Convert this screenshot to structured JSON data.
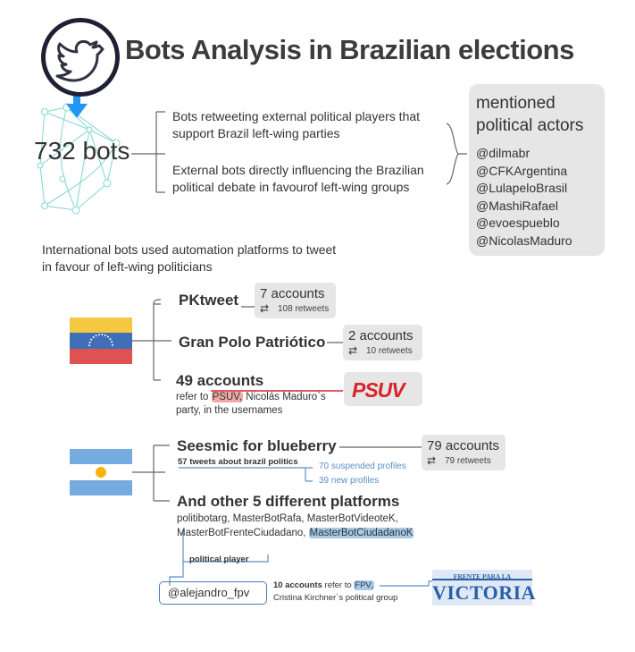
{
  "title": "Bots Analysis in Brazilian elections",
  "bots_count": "732 bots",
  "summary": {
    "line1": "Bots retweeting external political players that support Brazil left-wing parties",
    "line2": "External bots directly influencing the Brazilian political debate in favourof left-wing groups"
  },
  "actors": {
    "title": "mentioned political actors",
    "items": [
      "@dilmabr",
      "@CFKArgentina",
      "@LulapeloBrasil",
      "@MashiRafael",
      "@evoespueblo",
      "@NicolasMaduro"
    ]
  },
  "intro": "International bots used automation platforms to tweet in favour of left-wing politicians",
  "venezuela": {
    "flag_colors": [
      "#f5c842",
      "#3f6fb8",
      "#e05252"
    ],
    "pktweet": {
      "label": "PKtweet",
      "accounts": "7 accounts",
      "retweets": "108 retweets"
    },
    "gran_polo": {
      "label": "Gran Polo Patriótico",
      "accounts": "2 accounts",
      "retweets": "10 retweets"
    },
    "psuv": {
      "label": "49 accounts",
      "desc_before": "refer to ",
      "desc_highlight": "PSUV,",
      "desc_after": " Nicolás Maduro`s party, in the usernames",
      "logo_text": "PSUV"
    }
  },
  "argentina": {
    "flag_colors": [
      "#74acdf",
      "#ffffff",
      "#f6b40e"
    ],
    "seesmic": {
      "label": "Seesmic for blueberry",
      "accounts": "79 accounts",
      "retweets": "79 retweets",
      "tweets_note": "57 tweets about brazil politics",
      "suspended": "70 suspended profiles",
      "new_profiles": "39 new profiles"
    },
    "other": {
      "label": "And other 5 different platforms",
      "platforms": "politibotarg, MasterBotRafa, MasterBotVideoteK, MasterBotFrenteCiudadano,",
      "highlight": "MasterBotCiudadanoK"
    },
    "political_player_label": "political player",
    "handle": "@alejandro_fpv",
    "fpv": {
      "bold": "10 accounts",
      "before": " refer to ",
      "highlight": "FPV,",
      "after": "Cristina Kirchner`s political group"
    },
    "fpv_logo": {
      "top": "FRENTE PARA LA",
      "main": "VICTORIA"
    }
  },
  "colors": {
    "accent_blue": "#2196f3",
    "network_teal": "#7fd6d0",
    "psuv_red": "#d8232a",
    "fpv_blue": "#2b5fa8"
  }
}
